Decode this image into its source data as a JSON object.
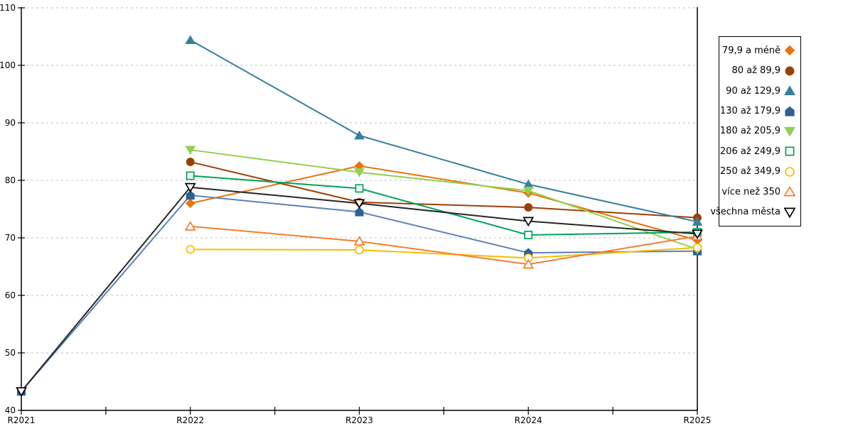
{
  "chart_data": {
    "type": "line",
    "title": "",
    "xlabel": "",
    "ylabel": "",
    "categories": [
      "R2021",
      "R2022",
      "R2023",
      "R2024",
      "R2025"
    ],
    "series": [
      {
        "name": "79,9 a méně",
        "marker": "diamond",
        "style": "filled",
        "color": "#E8740D",
        "values": [
          null,
          76.0,
          82.5,
          77.8,
          69.6
        ]
      },
      {
        "name": "80 až 89,9",
        "marker": "circle",
        "style": "filled",
        "color": "#9B4108",
        "values": [
          null,
          83.2,
          76.2,
          75.3,
          73.5
        ]
      },
      {
        "name": "90 až 129,9",
        "marker": "triangle-up",
        "style": "filled",
        "color": "#35809C",
        "values": [
          null,
          104.4,
          87.8,
          79.3,
          72.8
        ]
      },
      {
        "name": "130 až 179,9",
        "marker": "pentagon",
        "style": "filled",
        "color": "#2E6096",
        "line_color": "#5B80B4",
        "values": [
          43.3,
          77.4,
          74.5,
          67.4,
          67.7
        ]
      },
      {
        "name": "180 až 205,9",
        "marker": "triangle-down",
        "style": "filled",
        "color": "#92D050",
        "values": [
          null,
          85.3,
          81.4,
          78.2,
          68.0
        ]
      },
      {
        "name": "206 až 249,9",
        "marker": "square",
        "style": "open",
        "color": "#00A35A",
        "values": [
          null,
          80.8,
          78.6,
          70.5,
          71.0
        ]
      },
      {
        "name": "250 až 349,9",
        "marker": "circle",
        "style": "open",
        "color": "#F7BE00",
        "values": [
          null,
          68.0,
          67.9,
          66.5,
          68.3
        ]
      },
      {
        "name": "více než 350",
        "marker": "triangle-up",
        "style": "open",
        "color": "#F57D2E",
        "values": [
          null,
          72.0,
          69.4,
          65.4,
          70.3
        ]
      },
      {
        "name": "všechna města",
        "marker": "triangle-down",
        "style": "open",
        "color": "#000000",
        "line_color": "#262626",
        "values": [
          43.3,
          78.8,
          76.0,
          72.9,
          70.7
        ]
      }
    ],
    "ylim": [
      40,
      110
    ],
    "ytick_step": 10,
    "y_tick_labels": [
      "40",
      "50",
      "60",
      "70",
      "80",
      "90",
      "100",
      "110"
    ],
    "grid": "horizontal-dashed",
    "legend_position": "right"
  },
  "colors": {
    "background": "#FFFFFF",
    "grid": "#C2C2C2",
    "axis": "#000000",
    "tick_label": "#000000",
    "legend_border": "#000000"
  }
}
